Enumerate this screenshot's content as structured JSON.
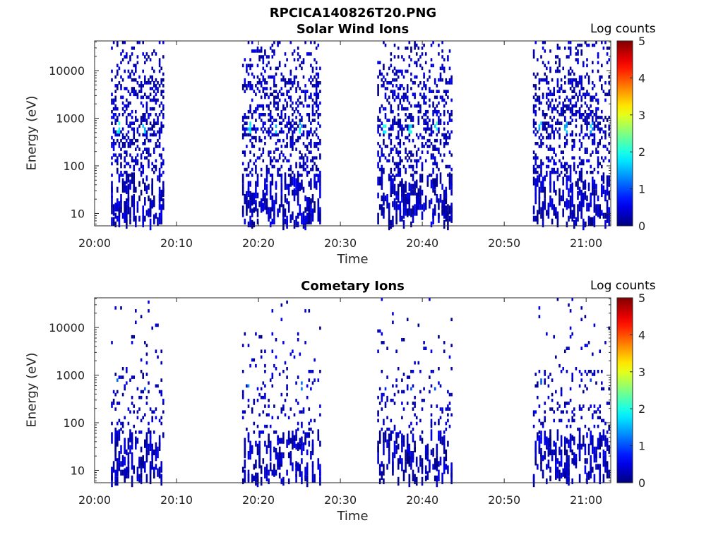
{
  "figure": {
    "title": "RPCICA140826T20.PNG"
  },
  "colormap": "jet",
  "chart_data": [
    {
      "type": "heatmap",
      "title": "Solar Wind Ions",
      "xlabel": "Time",
      "ylabel": "Energy (eV)",
      "x_ticks": [
        "20:00",
        "20:10",
        "20:20",
        "20:30",
        "20:40",
        "20:50",
        "21:00"
      ],
      "y_ticks": [
        "10",
        "100",
        "1000",
        "10000"
      ],
      "y_scale": "log",
      "ylim": [
        5.5,
        42000
      ],
      "xlim": [
        "20:00",
        "21:03"
      ],
      "colorbar": {
        "label": "Log counts",
        "ticks": [
          "0",
          "1",
          "2",
          "3",
          "4",
          "5"
        ],
        "range": [
          0,
          5
        ]
      },
      "bursts": [
        {
          "start": "20:02",
          "end": "20:08.5",
          "peak_energy_eV": 650,
          "max_log_count": 2.0
        },
        {
          "start": "20:18",
          "end": "20:27.8",
          "peak_energy_eV": 650,
          "max_log_count": 2.0
        },
        {
          "start": "20:34.5",
          "end": "20:43.8",
          "peak_energy_eV": 650,
          "max_log_count": 2.2
        },
        {
          "start": "20:53.5",
          "end": "21:03",
          "peak_energy_eV": 650,
          "max_log_count": 1.8
        }
      ]
    },
    {
      "type": "heatmap",
      "title": "Cometary Ions",
      "xlabel": "Time",
      "ylabel": "Energy (eV)",
      "x_ticks": [
        "20:00",
        "20:10",
        "20:20",
        "20:30",
        "20:40",
        "20:50",
        "21:00"
      ],
      "y_ticks": [
        "10",
        "100",
        "1000",
        "10000"
      ],
      "y_scale": "log",
      "ylim": [
        5.5,
        42000
      ],
      "xlim": [
        "20:00",
        "21:03"
      ],
      "colorbar": {
        "label": "Log counts",
        "ticks": [
          "0",
          "1",
          "2",
          "3",
          "4",
          "5"
        ],
        "range": [
          0,
          5
        ]
      },
      "bursts": [
        {
          "start": "20:02",
          "end": "20:08.5",
          "peak_energy_eV": 650,
          "max_log_count": 1.2
        },
        {
          "start": "20:18",
          "end": "20:27.8",
          "peak_energy_eV": 650,
          "max_log_count": 1.4
        },
        {
          "start": "20:34.5",
          "end": "20:43.8",
          "peak_energy_eV": 650,
          "max_log_count": 1.1
        },
        {
          "start": "20:53.5",
          "end": "21:03",
          "peak_energy_eV": 650,
          "max_log_count": 1.1
        }
      ]
    }
  ]
}
